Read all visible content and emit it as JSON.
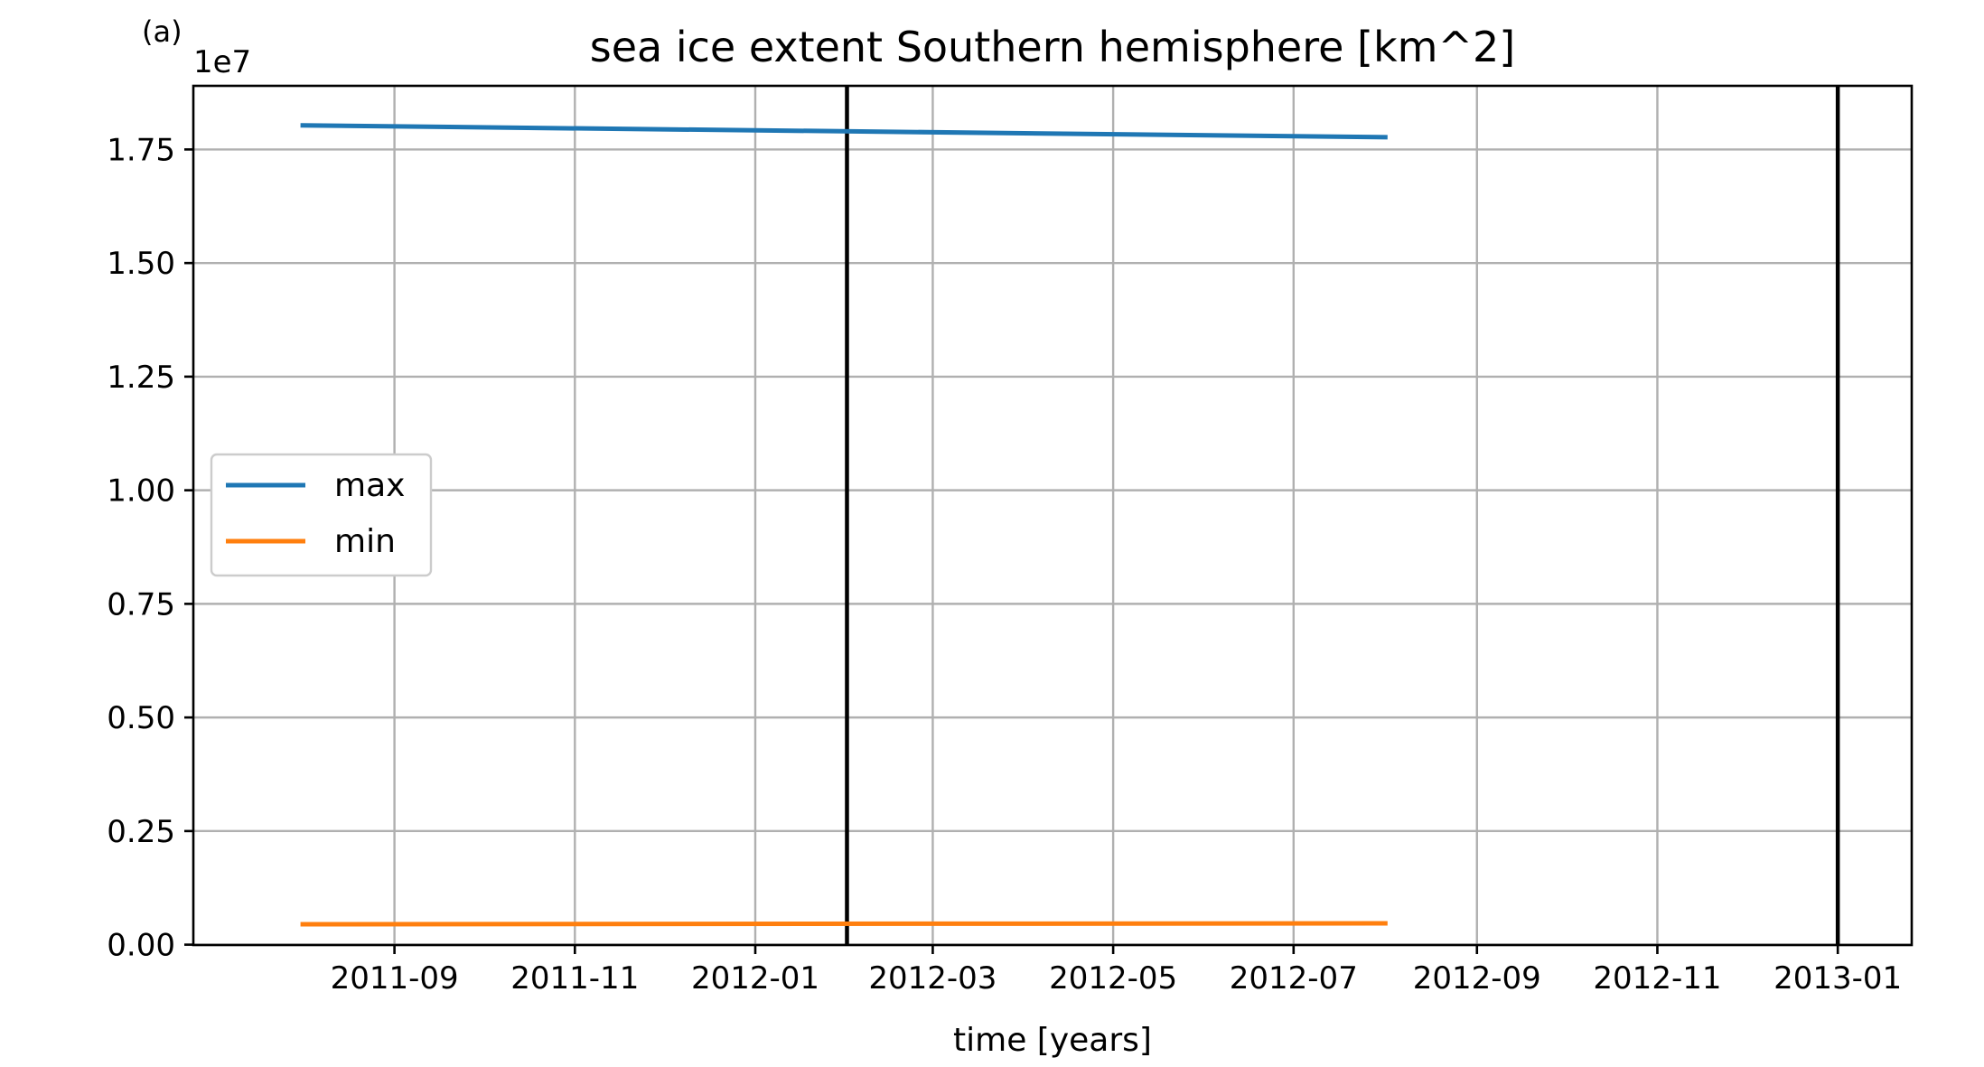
{
  "chart_data": {
    "type": "line",
    "panel_label": "(a)",
    "title": "sea ice extent Southern hemisphere [km^2]",
    "xlabel": "time [years]",
    "ylabel": "",
    "y_offset_label": "1e7",
    "grid": true,
    "legend_position": "center-left",
    "xlim": [
      "2011-06-25",
      "2013-01-26"
    ],
    "ylim": [
      -0.0008,
      1.89
    ],
    "x_ticks": [
      {
        "date": "2011-09-01",
        "label": "2011-09"
      },
      {
        "date": "2011-11-01",
        "label": "2011-11"
      },
      {
        "date": "2012-01-01",
        "label": "2012-01"
      },
      {
        "date": "2012-03-01",
        "label": "2012-03"
      },
      {
        "date": "2012-05-01",
        "label": "2012-05"
      },
      {
        "date": "2012-07-01",
        "label": "2012-07"
      },
      {
        "date": "2012-09-01",
        "label": "2012-09"
      },
      {
        "date": "2012-11-01",
        "label": "2012-11"
      },
      {
        "date": "2013-01-01",
        "label": "2013-01"
      }
    ],
    "y_ticks": [
      {
        "value": 0.0,
        "label": "0.00"
      },
      {
        "value": 0.25,
        "label": "0.25"
      },
      {
        "value": 0.5,
        "label": "0.50"
      },
      {
        "value": 0.75,
        "label": "0.75"
      },
      {
        "value": 1.0,
        "label": "1.00"
      },
      {
        "value": 1.25,
        "label": "1.25"
      },
      {
        "value": 1.5,
        "label": "1.50"
      },
      {
        "value": 1.75,
        "label": "1.75"
      }
    ],
    "vertical_lines": [
      {
        "date": "2012-02-01",
        "color": "#000000"
      },
      {
        "date": "2013-01-01",
        "color": "#000000"
      }
    ],
    "series": [
      {
        "name": "max",
        "color": "#1f77b4",
        "x": [
          "2011-08-01",
          "2012-08-01"
        ],
        "y": [
          1.803,
          1.777
        ]
      },
      {
        "name": "min",
        "color": "#ff7f0e",
        "x": [
          "2011-08-01",
          "2012-08-01"
        ],
        "y": [
          0.045,
          0.047
        ]
      }
    ]
  }
}
